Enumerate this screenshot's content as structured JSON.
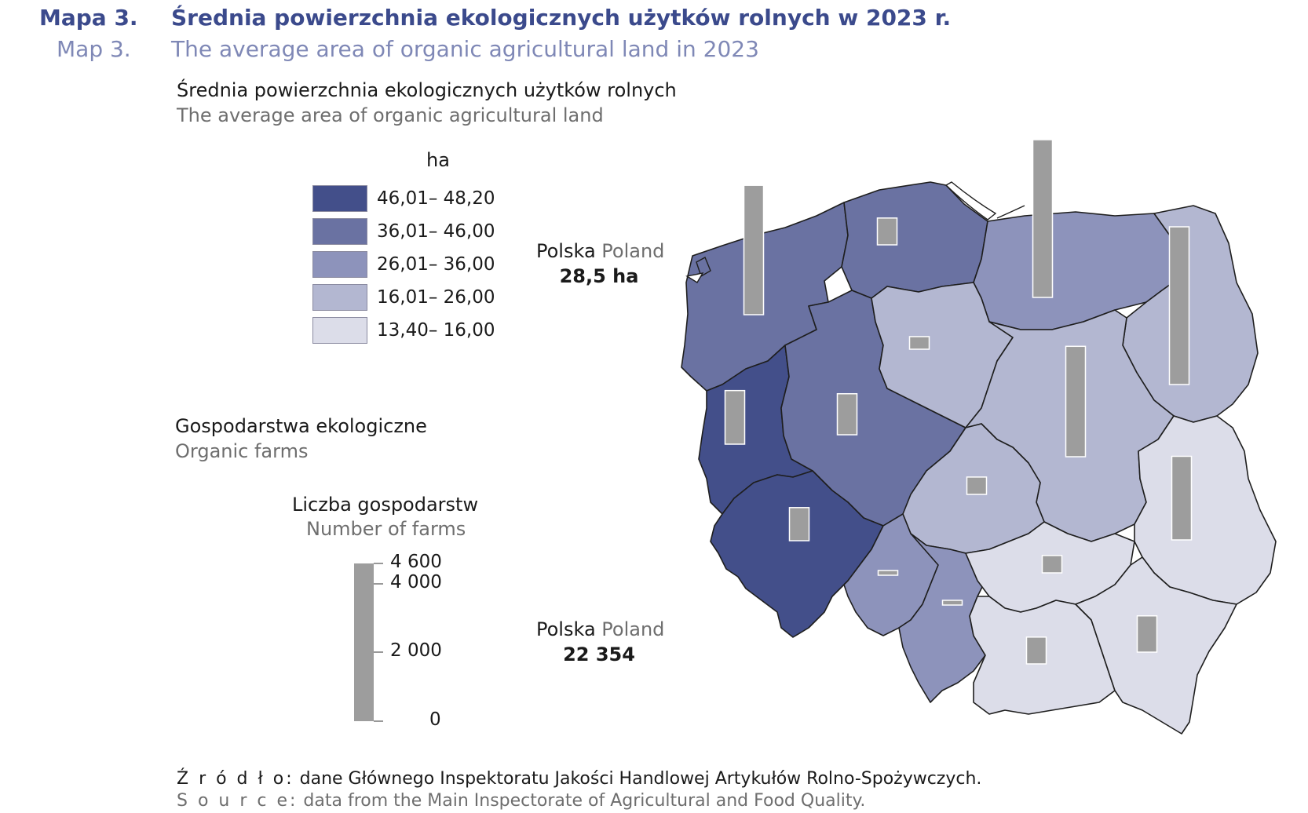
{
  "header": {
    "map_number_pl": "Mapa 3.",
    "title_pl": "Średnia powierzchnia ekologicznych użytków rolnych w 2023 r.",
    "map_number_en": "Map 3.",
    "title_en": "The average area of organic agricultural land in 2023"
  },
  "area_legend": {
    "heading_pl": "Średnia powierzchnia ekologicznych użytków rolnych",
    "heading_en": "The average area of organic agricultural land",
    "unit": "ha",
    "classes": [
      {
        "label": "46,01– 48,20",
        "color": "#434f8a"
      },
      {
        "label": "36,01– 46,00",
        "color": "#6a72a2"
      },
      {
        "label": "26,01– 36,00",
        "color": "#8d93bb"
      },
      {
        "label": "16,01– 26,00",
        "color": "#b3b7d1"
      },
      {
        "label": "13,40– 16,00",
        "color": "#dcdde9"
      }
    ],
    "national_label_pl": "Polska",
    "national_label_en": "Poland",
    "national_value": "28,5 ha"
  },
  "farms_legend": {
    "heading_pl": "Gospodarstwa ekologiczne",
    "heading_en": "Organic farms",
    "count_heading_pl": "Liczba gospodarstw",
    "count_heading_en": "Number of farms",
    "scale_ticks": [
      "4 600",
      "4 000",
      "2 000",
      "0"
    ],
    "bar_color": "#9d9d9d",
    "national_label_pl": "Polska",
    "national_label_en": "Poland",
    "national_value": "22 354"
  },
  "source": {
    "label_pl": "Ź r ó d ł o:",
    "text_pl": " dane Głównego Inspektoratu Jakości Handlowej Artykułów Rolno-Spożywczych.",
    "label_en": "S o u r c e:",
    "text_en": " data from the Main Inspectorate of Agricultural and Food Quality."
  },
  "map_data": {
    "regions": [
      {
        "id": "zachodniopomorskie",
        "class": 1,
        "farms_bar": 0.82
      },
      {
        "id": "pomorskie",
        "class": 1,
        "farms_bar": 0.17
      },
      {
        "id": "warminsko-mazurskie",
        "class": 2,
        "farms_bar": 1.0
      },
      {
        "id": "podlaskie",
        "class": 3,
        "farms_bar": 1.0
      },
      {
        "id": "lubuskie",
        "class": 0,
        "farms_bar": 0.34
      },
      {
        "id": "wielkopolskie",
        "class": 1,
        "farms_bar": 0.26
      },
      {
        "id": "kujawsko-pomorskie",
        "class": 3,
        "farms_bar": 0.08
      },
      {
        "id": "mazowieckie",
        "class": 3,
        "farms_bar": 0.7
      },
      {
        "id": "lodzkie",
        "class": 3,
        "farms_bar": 0.11
      },
      {
        "id": "lubelskie",
        "class": 4,
        "farms_bar": 0.53
      },
      {
        "id": "dolnoslaskie",
        "class": 0,
        "farms_bar": 0.21
      },
      {
        "id": "opolskie",
        "class": 2,
        "farms_bar": 0.03
      },
      {
        "id": "slaskie",
        "class": 2,
        "farms_bar": 0.03
      },
      {
        "id": "swietokrzyskie",
        "class": 4,
        "farms_bar": 0.11
      },
      {
        "id": "malopolskie",
        "class": 4,
        "farms_bar": 0.17
      },
      {
        "id": "podkarpackie",
        "class": 4,
        "farms_bar": 0.23
      }
    ]
  }
}
